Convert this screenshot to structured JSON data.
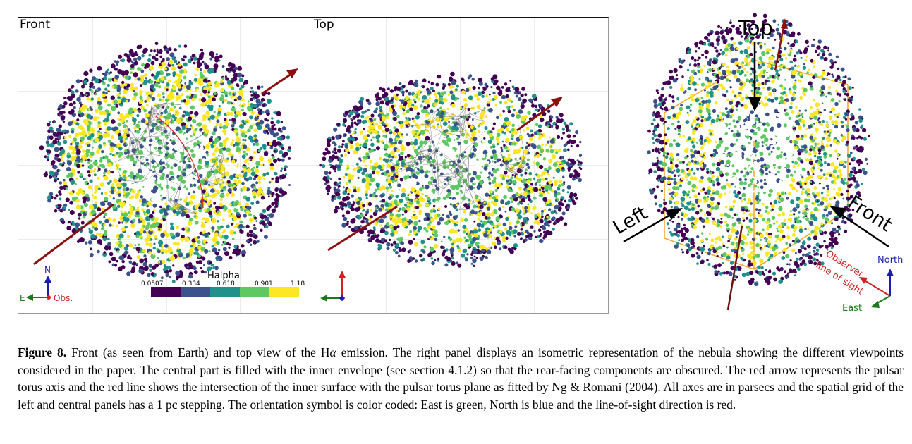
{
  "front_panel": {
    "label": "Front",
    "colorbar": {
      "title": "Halpha",
      "ticks": [
        "0.0507",
        "0.334",
        "0.618",
        "0.901",
        "1.18"
      ],
      "colors": [
        "#440154",
        "#3b528b",
        "#21918c",
        "#5ec962",
        "#fde725"
      ]
    },
    "orientation": {
      "north": "N",
      "east": "E",
      "observer": "Obs."
    }
  },
  "top_panel": {
    "label": "Top"
  },
  "iso_panel": {
    "top_label": "Top",
    "left_label": "Left",
    "front_label": "Front",
    "observer_label_line1": "Observer",
    "observer_label_line2": "line of sight",
    "north_label": "North",
    "east_label": "East"
  },
  "colors": {
    "torus_axis": "#8b1010",
    "east": "#1a7a1a",
    "north": "#1a1ab4",
    "line_of_sight": "#d42020",
    "iso_box": "#f5a623"
  },
  "caption": {
    "label": "Figure 8.",
    "text_before_halpha": " Front (as seen from Earth) and top view of the H",
    "alpha": "α",
    "text_after_halpha": " emission. The right panel displays an isometric representation of the nebula showing the different viewpoints considered in the paper. The central part is filled with the inner envelope (see section 4.1.2) so that the rear-facing components are obscured. The red arrow represents the pulsar torus axis and the red line shows the intersection of the inner surface with the pulsar torus plane as fitted by Ng & Romani (2004). All axes are in parsecs and the spatial grid of the left and central panels has a 1 pc stepping. The orientation symbol is color coded: East is green, North is blue and the line-of-sight direction is red."
  }
}
